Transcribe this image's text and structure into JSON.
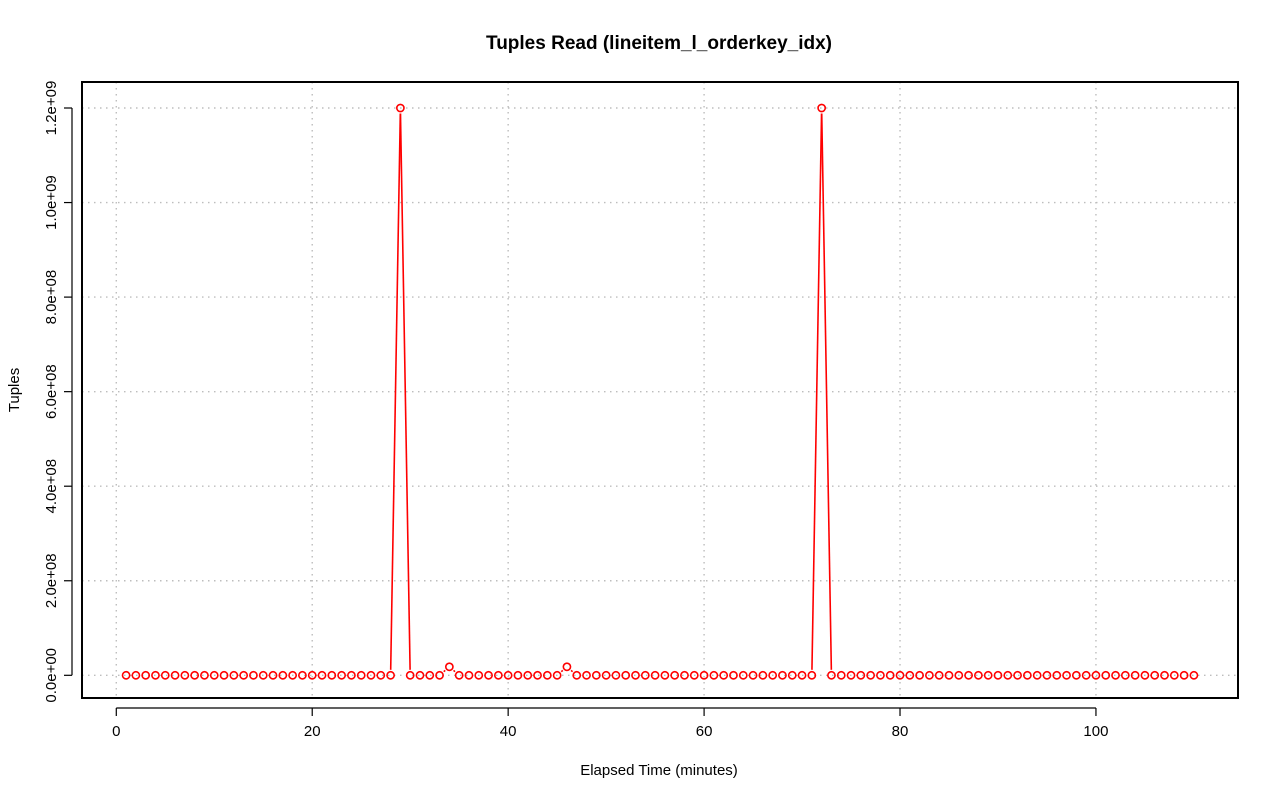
{
  "chart_data": {
    "type": "line",
    "title": "Tuples Read (lineitem_l_orderkey_idx)",
    "xlabel": "Elapsed Time (minutes)",
    "ylabel": "Tuples",
    "xlim": [
      -3.5,
      114.5
    ],
    "ylim": [
      -48000000,
      1255000000
    ],
    "x_ticks": [
      0,
      20,
      40,
      60,
      80,
      100
    ],
    "x_tick_labels": [
      "0",
      "20",
      "40",
      "60",
      "80",
      "100"
    ],
    "y_ticks": [
      0,
      200000000,
      400000000,
      600000000,
      800000000,
      1000000000,
      1200000000
    ],
    "y_tick_labels": [
      "0.0e+00",
      "2.0e+08",
      "4.0e+08",
      "6.0e+08",
      "8.0e+08",
      "1.0e+09",
      "1.2e+09"
    ],
    "grid": true,
    "series": [
      {
        "color": "#ff0000",
        "marker": "open-circle",
        "x": [
          1,
          2,
          3,
          4,
          5,
          6,
          7,
          8,
          9,
          10,
          11,
          12,
          13,
          14,
          15,
          16,
          17,
          18,
          19,
          20,
          21,
          22,
          23,
          24,
          25,
          26,
          27,
          28,
          29,
          30,
          31,
          32,
          33,
          34,
          35,
          36,
          37,
          38,
          39,
          40,
          41,
          42,
          43,
          44,
          45,
          46,
          47,
          48,
          49,
          50,
          51,
          52,
          53,
          54,
          55,
          56,
          57,
          58,
          59,
          60,
          61,
          62,
          63,
          64,
          65,
          66,
          67,
          68,
          69,
          70,
          71,
          72,
          73,
          74,
          75,
          76,
          77,
          78,
          79,
          80,
          81,
          82,
          83,
          84,
          85,
          86,
          87,
          88,
          89,
          90,
          91,
          92,
          93,
          94,
          95,
          96,
          97,
          98,
          99,
          100,
          101,
          102,
          103,
          104,
          105,
          106,
          107,
          108,
          109,
          110
        ],
        "values": [
          0,
          0,
          0,
          0,
          0,
          0,
          0,
          0,
          0,
          0,
          0,
          0,
          0,
          0,
          0,
          0,
          0,
          0,
          0,
          0,
          0,
          0,
          0,
          0,
          0,
          0,
          0,
          0,
          1200000000,
          0,
          0,
          0,
          0,
          18000000,
          0,
          0,
          0,
          0,
          0,
          0,
          0,
          0,
          0,
          0,
          0,
          18000000,
          0,
          0,
          0,
          0,
          0,
          0,
          0,
          0,
          0,
          0,
          0,
          0,
          0,
          0,
          0,
          0,
          0,
          0,
          0,
          0,
          0,
          0,
          0,
          0,
          0,
          1200000000,
          0,
          0,
          0,
          0,
          0,
          0,
          0,
          0,
          0,
          0,
          0,
          0,
          0,
          0,
          0,
          0,
          0,
          0,
          0,
          0,
          0,
          0,
          0,
          0,
          0,
          0,
          0,
          0,
          0,
          0,
          0,
          0,
          0,
          0,
          0,
          0,
          0,
          0
        ]
      }
    ]
  }
}
